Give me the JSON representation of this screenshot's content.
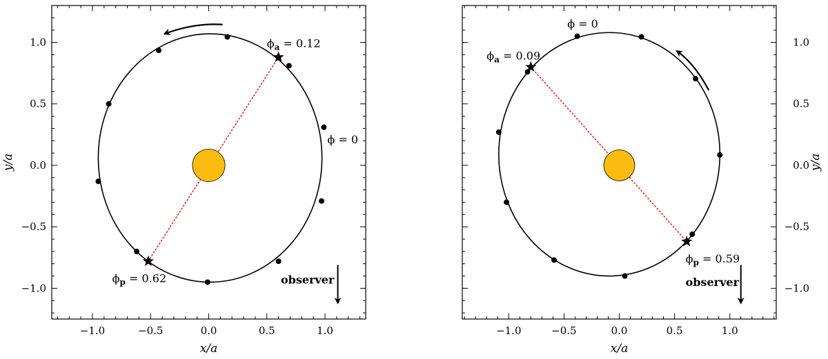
{
  "chart_data": [
    {
      "type": "scatter",
      "panel": "left",
      "xlabel": "x/a",
      "ylabel": "y/a",
      "xlim": [
        -1.35,
        1.35
      ],
      "ylim": [
        -1.25,
        1.3
      ],
      "xticks": [
        -1.0,
        -0.5,
        0.0,
        0.5,
        1.0
      ],
      "yticks": [
        -1.0,
        -0.5,
        0.0,
        0.5,
        1.0
      ],
      "xtick_labels": [
        "−1.0",
        "−0.5",
        "0.0",
        "0.5",
        "1.0"
      ],
      "ytick_labels": [
        "−1.0",
        "−0.5",
        "0.0",
        "0.5",
        "1.0"
      ],
      "ytick_side": "left",
      "star": {
        "x": 0.0,
        "y": 0.0,
        "radius": 0.14,
        "color": "#FBBB10"
      },
      "orbit": {
        "cx": 0.012,
        "cy": 0.06,
        "rx": 0.962,
        "ry": 1.01
      },
      "phase_points": [
        {
          "x": 0.16,
          "y": 1.045
        },
        {
          "x": -0.43,
          "y": 0.935
        },
        {
          "x": -0.86,
          "y": 0.5
        },
        {
          "x": -0.95,
          "y": -0.13
        },
        {
          "x": -0.62,
          "y": -0.7
        },
        {
          "x": -0.01,
          "y": -0.95
        },
        {
          "x": 0.6,
          "y": -0.78
        },
        {
          "x": 0.97,
          "y": -0.29
        },
        {
          "x": 0.99,
          "y": 0.31
        },
        {
          "x": 0.69,
          "y": 0.81
        }
      ],
      "apsides": {
        "apo": {
          "x": 0.6,
          "y": 0.88
        },
        "peri": {
          "x": -0.52,
          "y": -0.78
        }
      },
      "apsis_line_color": "#e8201c",
      "labels": {
        "phi_zero": {
          "base": "ϕ = 0",
          "x": 1.02,
          "y": 0.18
        },
        "phi_a": {
          "base": "ϕ",
          "sub": "a",
          "eq": " = 0.12",
          "x": 0.5,
          "y": 0.96
        },
        "phi_p": {
          "base": "ϕ",
          "sub": "p",
          "eq": " = 0.62",
          "x": -0.83,
          "y": -0.95
        }
      },
      "direction_arrow": {
        "from": [
          0.12,
          1.145
        ],
        "ctrl": [
          -0.12,
          1.16
        ],
        "to": [
          -0.38,
          1.07
        ]
      },
      "observer": {
        "label": "observer",
        "label_x": 0.62,
        "label_y": -0.96,
        "arrow_x": 1.11,
        "arrow_y1": -0.81,
        "arrow_y2": -1.12
      }
    },
    {
      "type": "scatter",
      "panel": "right",
      "xlabel": "x/a",
      "ylabel": "y/a",
      "xlim": [
        -1.42,
        1.42
      ],
      "ylim": [
        -1.25,
        1.3
      ],
      "xticks": [
        -1.0,
        -0.5,
        0.0,
        0.5,
        1.0
      ],
      "yticks": [
        -1.0,
        -0.5,
        0.0,
        0.5,
        1.0
      ],
      "xtick_labels": [
        "−1.0",
        "−0.5",
        "0.0",
        "0.5",
        "1.0"
      ],
      "ytick_labels": [
        "−1.0",
        "−0.5",
        "0.0",
        "0.5",
        "1.0"
      ],
      "ytick_side": "right",
      "star": {
        "x": 0.0,
        "y": 0.0,
        "radius": 0.14,
        "color": "#FBBB10"
      },
      "orbit": {
        "cx": -0.09,
        "cy": 0.09,
        "rx": 1.0,
        "ry": 0.99
      },
      "phase_points": [
        {
          "x": -0.38,
          "y": 1.05
        },
        {
          "x": 0.2,
          "y": 1.045
        },
        {
          "x": 0.69,
          "y": 0.705
        },
        {
          "x": 0.91,
          "y": 0.085
        },
        {
          "x": 0.66,
          "y": -0.56
        },
        {
          "x": 0.05,
          "y": -0.9
        },
        {
          "x": -0.59,
          "y": -0.77
        },
        {
          "x": -1.02,
          "y": -0.3
        },
        {
          "x": -1.09,
          "y": 0.27
        },
        {
          "x": -0.83,
          "y": 0.76
        }
      ],
      "apsides": {
        "apo": {
          "x": -0.8,
          "y": 0.8
        },
        "peri": {
          "x": 0.61,
          "y": -0.62
        }
      },
      "apsis_line_color": "#e8201c",
      "labels": {
        "phi_zero": {
          "base": "ϕ = 0",
          "x": -0.47,
          "y": 1.12
        },
        "phi_a": {
          "base": "ϕ",
          "sub": "a",
          "eq": " = 0.09",
          "x": -1.2,
          "y": 0.86
        },
        "phi_p": {
          "base": "ϕ",
          "sub": "p",
          "eq": " = 0.59",
          "x": 0.6,
          "y": -0.79
        }
      },
      "direction_arrow": {
        "from": [
          0.81,
          0.61
        ],
        "ctrl": [
          0.68,
          0.83
        ],
        "to": [
          0.52,
          0.93
        ]
      },
      "observer": {
        "label": "observer",
        "label_x": 0.6,
        "label_y": -0.98,
        "arrow_x": 1.1,
        "arrow_y1": -0.81,
        "arrow_y2": -1.12
      }
    }
  ]
}
